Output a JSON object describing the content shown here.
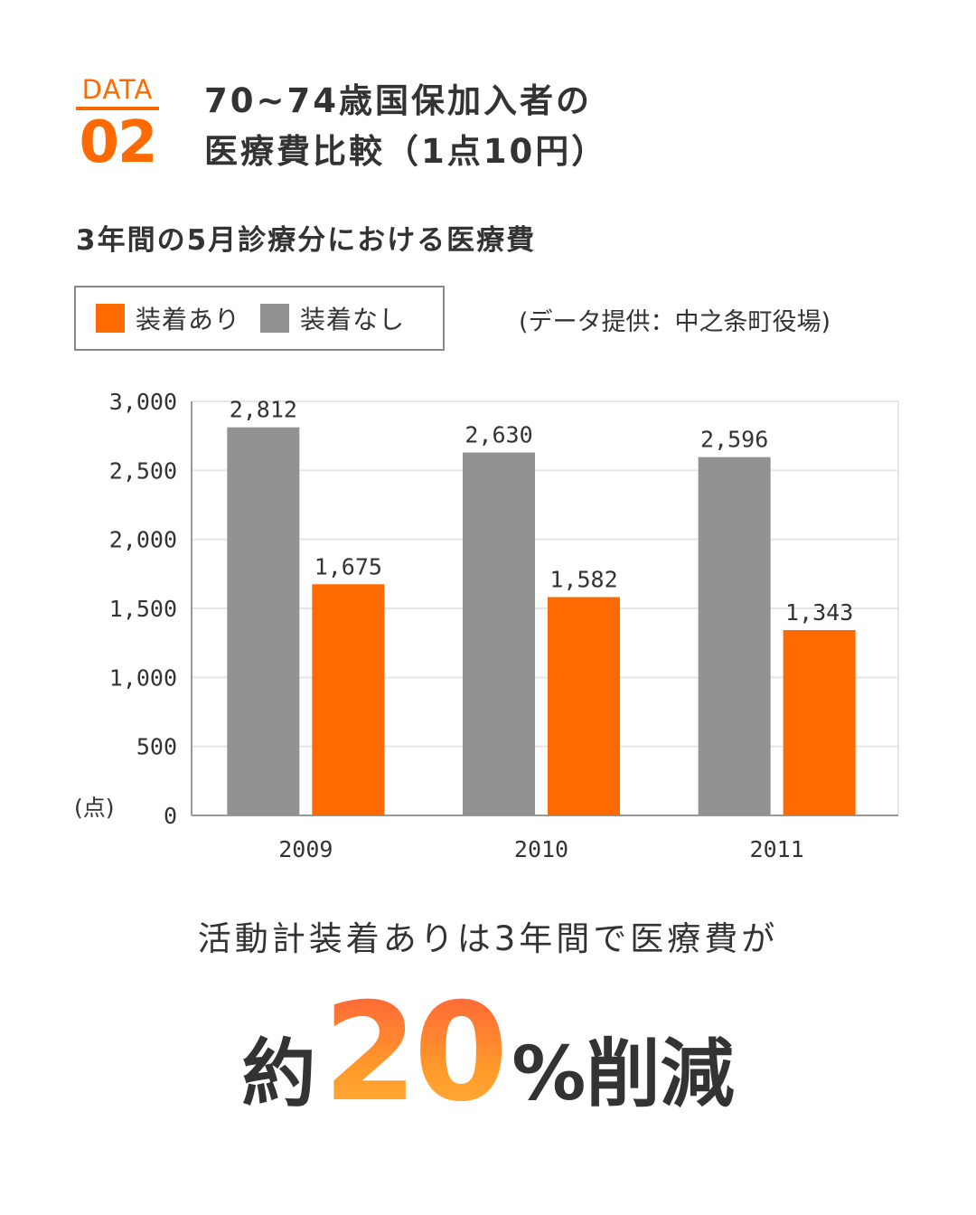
{
  "badge": {
    "label": "DATA",
    "number": "02"
  },
  "title": {
    "line1": "70~74歳国保加入者の",
    "line2": "医療費比較（1点10円）"
  },
  "subtitle": "3年間の5月診療分における医療費",
  "legend": [
    {
      "label": "装着あり",
      "color": "#ff6a00"
    },
    {
      "label": "装着なし",
      "color": "#929292"
    }
  ],
  "source": "(データ提供：中之条町役場)",
  "chart_data": {
    "type": "bar",
    "categories": [
      "2009",
      "2010",
      "2011"
    ],
    "series": [
      {
        "name": "装着なし",
        "values": [
          2812,
          2630,
          2596
        ],
        "color": "#929292"
      },
      {
        "name": "装着あり",
        "values": [
          1675,
          1582,
          1343
        ],
        "color": "#ff6a00"
      }
    ],
    "y_unit": "(点)",
    "ylim": [
      0,
      3000
    ],
    "y_ticks": [
      0,
      500,
      1000,
      1500,
      2000,
      2500,
      3000
    ],
    "y_tick_labels": [
      "0",
      "500",
      "1,000",
      "1,500",
      "2,000",
      "2,500",
      "3,000"
    ],
    "value_labels": [
      [
        "2,812",
        "2,630",
        "2,596"
      ],
      [
        "1,675",
        "1,582",
        "1,343"
      ]
    ],
    "grid": true,
    "trend_arrow_color": "#ffe600"
  },
  "caption": "活動計装着ありは3年間で医療費が",
  "headline": {
    "pre": "約",
    "number": "20",
    "post": "%削減"
  }
}
